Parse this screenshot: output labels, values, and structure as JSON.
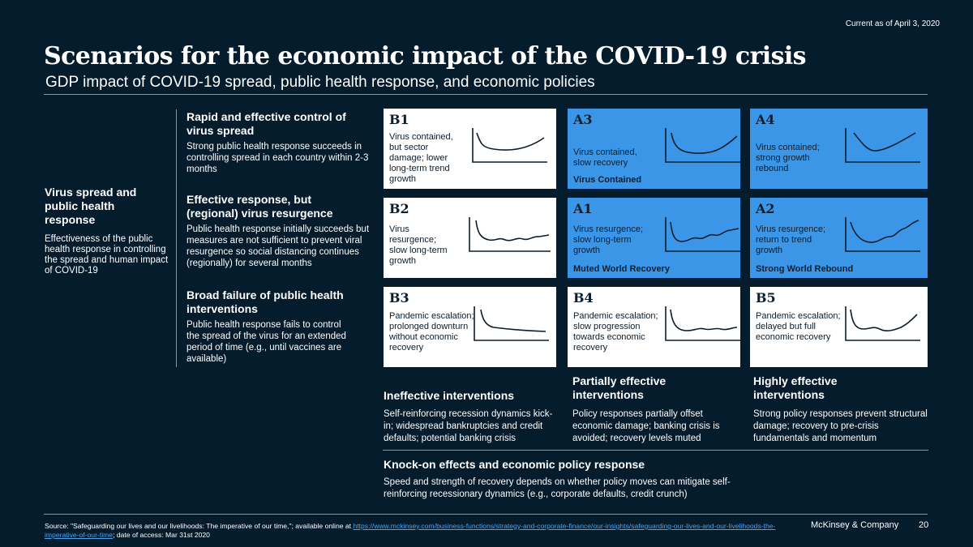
{
  "header": {
    "current_as_of": "Current as of April 3, 2020",
    "title": "Scenarios for the economic impact of the COVID-19 crisis",
    "subtitle": "GDP impact of COVID-19 spread, public health response, and economic policies"
  },
  "left_axis": {
    "heading": "Virus spread and public health response",
    "body": "Effectiveness of the public health response in controlling the spread and human impact of COVID-19"
  },
  "rows": [
    {
      "heading": "Rapid and effective control of virus spread",
      "body": "Strong public health response succeeds in controlling spread in each country within 2-3 months"
    },
    {
      "heading": "Effective response, but (regional) virus resurgence",
      "body": "Public health response initially succeeds but measures are not sufficient to prevent viral resurgence so social distancing continues (regionally) for several months"
    },
    {
      "heading": "Broad failure of public health interventions",
      "body": "Public health response fails to control the spread of the virus for an extended period of time (e.g., until vaccines are available)"
    }
  ],
  "cells": {
    "b1": {
      "label": "B1",
      "desc": "Virus contained, but sector damage; lower long-term trend growth",
      "tag": "",
      "style": "white",
      "curve": "deep-dip-partial-recovery"
    },
    "a3": {
      "label": "A3",
      "desc": "Virus contained, slow recovery",
      "tag": "Virus Contained",
      "style": "blue",
      "curve": "u-shape-slow"
    },
    "a4": {
      "label": "A4",
      "desc": "Virus contained; strong growth rebound",
      "tag": "",
      "style": "blue",
      "curve": "v-shape-rebound"
    },
    "b2": {
      "label": "B2",
      "desc": "Virus resurgence; slow long-term growth",
      "tag": "",
      "style": "white",
      "curve": "drop-flat-wavy"
    },
    "a1": {
      "label": "A1",
      "desc": "Virus resurgence; slow long-term growth",
      "tag": "Muted World Recovery",
      "style": "blue",
      "curve": "drop-slow-wavy-rise"
    },
    "a2": {
      "label": "A2",
      "desc": "Virus resurgence; return to trend growth",
      "tag": "Strong World Rebound",
      "style": "blue",
      "curve": "drop-wavy-return"
    },
    "b3": {
      "label": "B3",
      "desc": "Pandemic escalation; prolonged downturn without economic recovery",
      "tag": "",
      "style": "white",
      "curve": "drop-prolonged"
    },
    "b4": {
      "label": "B4",
      "desc": "Pandemic escalation; slow progression towards economic recovery",
      "tag": "",
      "style": "white",
      "curve": "drop-bumpy-flat"
    },
    "b5": {
      "label": "B5",
      "desc": "Pandemic escalation; delayed but full economic recovery",
      "tag": "",
      "style": "white",
      "curve": "drop-delayed-recovery"
    }
  },
  "columns": [
    {
      "heading": "Ineffective interventions",
      "body": "Self-reinforcing recession dynamics kick-in; widespread bankruptcies and credit defaults; potential banking crisis"
    },
    {
      "heading": "Partially effective interventions",
      "body": "Policy responses partially offset economic damage; banking crisis is avoided; recovery levels muted"
    },
    {
      "heading": "Highly effective interventions",
      "body": "Strong policy responses prevent structural damage; recovery to pre-crisis fundamentals and momentum"
    }
  ],
  "knock_on": {
    "heading": "Knock-on effects and economic policy response",
    "body": "Speed and strength of recovery depends on whether policy moves can mitigate self-reinforcing recessionary dynamics (e.g., corporate defaults, credit crunch)"
  },
  "footer": {
    "source_prefix": "Source: \"Safeguarding our lives and our livelihoods: The imperative of our time,\"; available online at",
    "source_link": "https://www.mckinsey.com/business-functions/strategy-and-corporate-finance/our-insights/safeguarding-our-lives-and-our-livelihoods-the-imperative-of-our-time",
    "source_suffix": "; date of access: Mar 31st 2020",
    "brand": "McKinsey & Company",
    "page_number": "20"
  },
  "colors": {
    "background": "#051c2c",
    "accent_blue": "#3c96e8",
    "cell_white": "#ffffff",
    "text_dark": "#0b1e2d"
  }
}
